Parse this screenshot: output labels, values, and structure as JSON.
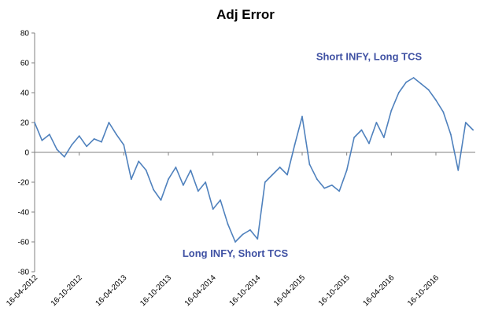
{
  "chart_data": {
    "type": "line",
    "title": "Adj Error",
    "xlabel": "",
    "ylabel": "",
    "ylim": [
      -80,
      80
    ],
    "y_ticks": [
      "80",
      "60",
      "40",
      "20",
      "0",
      "-20",
      "-40",
      "-60",
      "-80"
    ],
    "x_ticks": [
      "16-04-2012",
      "16-10-2012",
      "16-04-2013",
      "16-10-2013",
      "16-04-2014",
      "16-10-2014",
      "16-04-2015",
      "16-10-2015",
      "16-04-2016",
      "16-10-2016"
    ],
    "grid": false,
    "legend": "none",
    "annotations": [
      {
        "text": "Short INFY, Long TCS",
        "x": "2016-01",
        "y": 64
      },
      {
        "text": "Long INFY, Short TCS",
        "x": "2014-07",
        "y": -68
      }
    ],
    "series": [
      {
        "color": "#4f81bd",
        "x": [
          "2012-04",
          "2012-05",
          "2012-06",
          "2012-07",
          "2012-08",
          "2012-09",
          "2012-10",
          "2012-11",
          "2012-12",
          "2013-01",
          "2013-02",
          "2013-03",
          "2013-04",
          "2013-05",
          "2013-06",
          "2013-07",
          "2013-08",
          "2013-09",
          "2013-10",
          "2013-11",
          "2013-12",
          "2014-01",
          "2014-02",
          "2014-03",
          "2014-04",
          "2014-05",
          "2014-06",
          "2014-07",
          "2014-08",
          "2014-09",
          "2014-10",
          "2014-11",
          "2014-12",
          "2015-01",
          "2015-02",
          "2015-03",
          "2015-04",
          "2015-05",
          "2015-06",
          "2015-07",
          "2015-08",
          "2015-09",
          "2015-10",
          "2015-11",
          "2015-12",
          "2016-01",
          "2016-02",
          "2016-03",
          "2016-04",
          "2016-05",
          "2016-06",
          "2016-07",
          "2016-08",
          "2016-09",
          "2016-10",
          "2016-11",
          "2016-12",
          "2017-01",
          "2017-02",
          "2017-03"
        ],
        "y": [
          20,
          8,
          12,
          2,
          -3,
          5,
          11,
          4,
          9,
          7,
          20,
          12,
          5,
          -18,
          -6,
          -12,
          -25,
          -32,
          -18,
          -10,
          -22,
          -12,
          -26,
          -20,
          -38,
          -32,
          -48,
          -60,
          -55,
          -52,
          -58,
          -20,
          -15,
          -10,
          -15,
          5,
          24,
          -8,
          -18,
          -24,
          -22,
          -26,
          -12,
          10,
          15,
          6,
          20,
          10,
          28,
          40,
          47,
          50,
          46,
          42,
          35,
          27,
          12,
          -12,
          20,
          15
        ]
      }
    ]
  }
}
